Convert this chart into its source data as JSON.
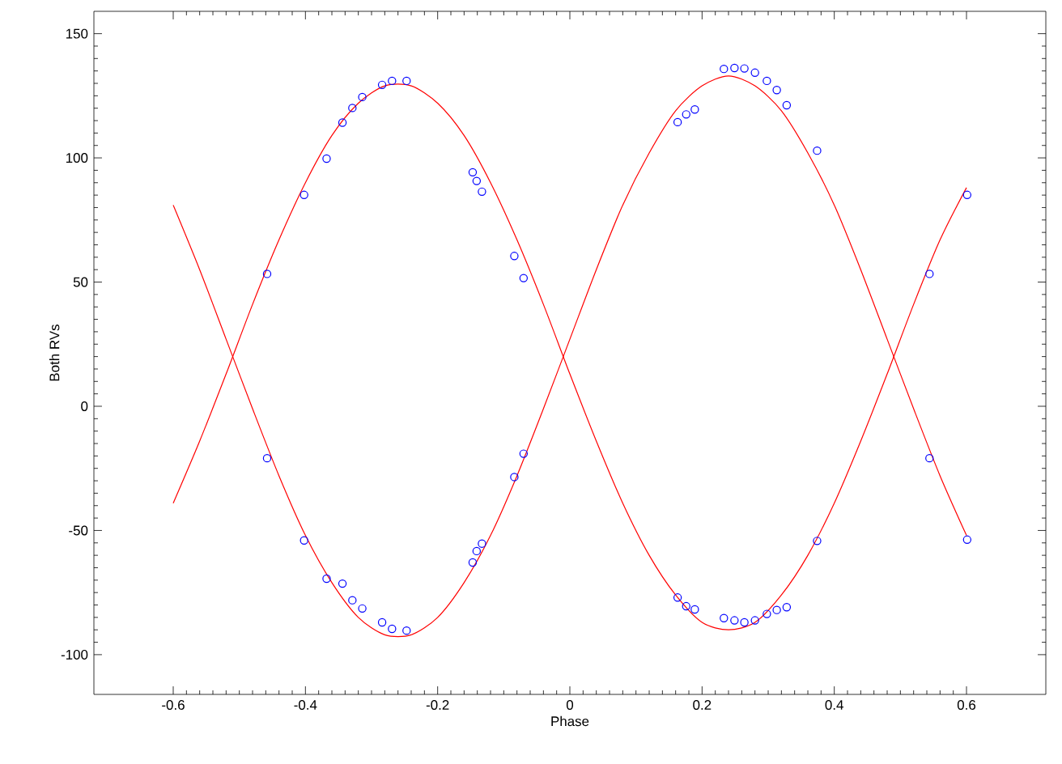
{
  "chart_data": {
    "type": "scatter",
    "xlabel": "Phase",
    "ylabel": "Both RVs",
    "xlim": [
      -0.72,
      0.72
    ],
    "ylim": [
      -116,
      159
    ],
    "xticks": [
      -0.6,
      -0.4,
      -0.2,
      0,
      0.2,
      0.4,
      0.6
    ],
    "yticks": [
      -100,
      -50,
      0,
      50,
      100,
      150
    ],
    "grid": false,
    "marker": "circle",
    "series": [
      {
        "color": "#0000ff",
        "x": [
          -0.458,
          -0.402,
          -0.368,
          -0.344,
          -0.329,
          -0.314,
          -0.284,
          -0.269,
          -0.247,
          -0.147,
          -0.141,
          -0.133,
          -0.084,
          -0.07,
          0.163,
          0.176,
          0.189,
          0.233,
          0.249,
          0.264,
          0.28,
          0.298,
          0.313,
          0.328,
          0.374,
          0.544,
          0.601
        ],
        "values": [
          53.3,
          85.1,
          99.7,
          114.2,
          120.1,
          124.5,
          129.4,
          131,
          131,
          94.2,
          90.7,
          86.4,
          60.5,
          51.6,
          -77,
          -80.5,
          -81.8,
          -85.3,
          -86.2,
          -87,
          -86.2,
          -83.6,
          -82,
          -80.9,
          -54.2,
          -20.9,
          -53.7
        ]
      },
      {
        "color": "#0000ff",
        "x": [
          -0.458,
          -0.402,
          -0.368,
          -0.344,
          -0.329,
          -0.314,
          -0.284,
          -0.269,
          -0.247,
          -0.147,
          -0.141,
          -0.133,
          -0.084,
          -0.07,
          0.163,
          0.176,
          0.189,
          0.233,
          0.249,
          0.264,
          0.28,
          0.298,
          0.313,
          0.328,
          0.374,
          0.544,
          0.601
        ],
        "values": [
          -20.9,
          -54,
          -69.4,
          -71.4,
          -78.1,
          -81.4,
          -87,
          -89.6,
          -90.3,
          -62.9,
          -58.3,
          -55.3,
          -28.5,
          -19.1,
          114.4,
          117.5,
          119.5,
          135.8,
          136.2,
          136,
          134.3,
          131,
          127.3,
          121.2,
          102.9,
          53.3,
          85.1
        ]
      },
      {
        "type": "line",
        "marker": "none",
        "color": "#ff0000",
        "x": [
          -0.6,
          -0.56,
          -0.52,
          -0.48,
          -0.44,
          -0.4,
          -0.36,
          -0.32,
          -0.28,
          -0.24,
          -0.2,
          -0.16,
          -0.12,
          -0.08,
          -0.04,
          0,
          0.04,
          0.08,
          0.12,
          0.16,
          0.2,
          0.24,
          0.28,
          0.32,
          0.36,
          0.4,
          0.44,
          0.48,
          0.52,
          0.56,
          0.6
        ],
        "values": [
          -39,
          -14,
          13,
          41,
          67,
          90,
          109,
          122,
          129,
          129,
          122,
          109,
          90,
          67,
          41,
          13,
          -14,
          -39,
          -60,
          -76,
          -87,
          -90,
          -87,
          -76,
          -60,
          -39,
          -14,
          13,
          41,
          67,
          88
        ]
      },
      {
        "type": "line",
        "marker": "none",
        "color": "#ff0000",
        "x": [
          -0.6,
          -0.56,
          -0.52,
          -0.48,
          -0.44,
          -0.4,
          -0.36,
          -0.32,
          -0.28,
          -0.24,
          -0.2,
          -0.16,
          -0.12,
          -0.08,
          -0.04,
          0,
          0.04,
          0.08,
          0.12,
          0.16,
          0.2,
          0.24,
          0.28,
          0.32,
          0.36,
          0.4,
          0.44,
          0.48,
          0.52,
          0.56,
          0.6
        ],
        "values": [
          81,
          55,
          27,
          -1,
          -28,
          -52,
          -71,
          -85,
          -92,
          -92,
          -85,
          -71,
          -52,
          -28,
          -1,
          27,
          55,
          81,
          102,
          119,
          129,
          133,
          129,
          119,
          102,
          81,
          55,
          27,
          -1,
          -28,
          -52
        ]
      }
    ]
  }
}
